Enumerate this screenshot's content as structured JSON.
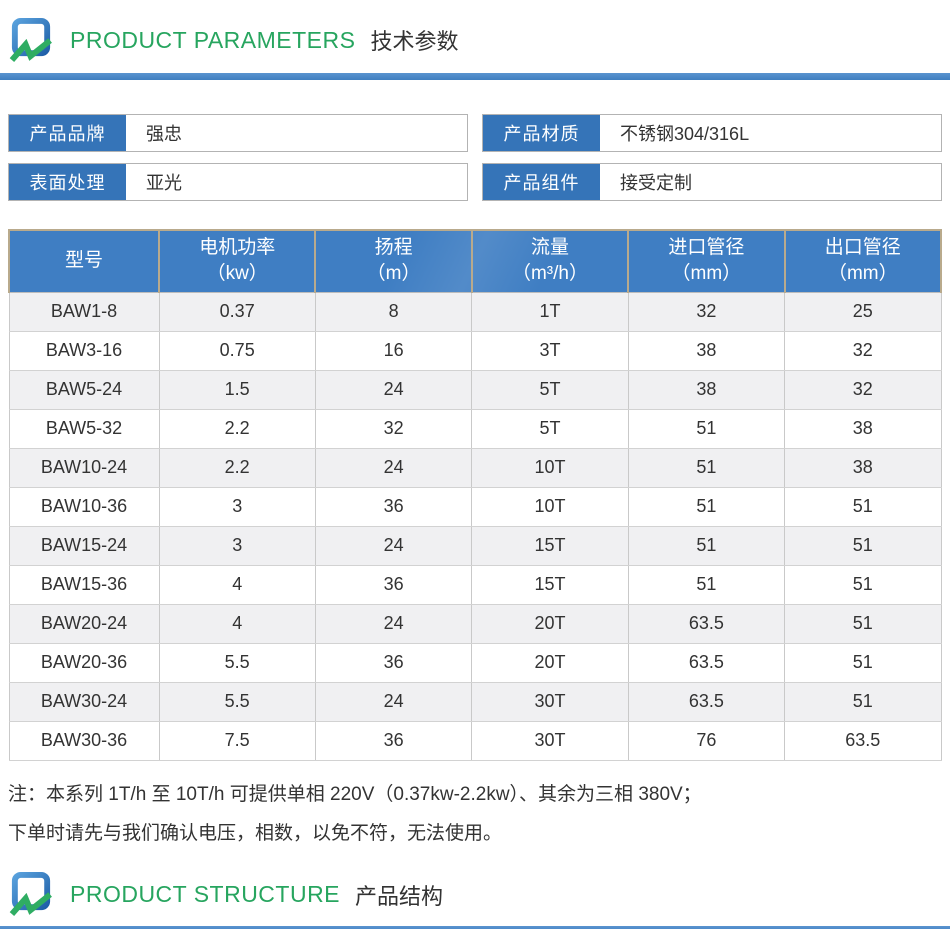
{
  "colors": {
    "accent_green": "#27a55f",
    "divider_blue": "#4a86c5",
    "label_blue": "#3574b8",
    "table_header_blue": "#3f7ec3",
    "alt_row_gray": "#f0f0f2"
  },
  "sections": {
    "parameters": {
      "title_en": "PRODUCT PARAMETERS",
      "title_zh": "技术参数"
    },
    "structure": {
      "title_en": "PRODUCT STRUCTURE",
      "title_zh": "产品结构"
    }
  },
  "info_boxes": [
    {
      "label": "产品品牌",
      "value": "强忠"
    },
    {
      "label": "产品材质",
      "value": "不锈钢304/316L"
    },
    {
      "label": "表面处理",
      "value": "亚光"
    },
    {
      "label": "产品组件",
      "value": "接受定制"
    }
  ],
  "table": {
    "headers": [
      {
        "name": "型号",
        "unit": ""
      },
      {
        "name": "电机功率",
        "unit": "（kw）"
      },
      {
        "name": "扬程",
        "unit": "（m）"
      },
      {
        "name": "流量",
        "unit": "（m³/h）"
      },
      {
        "name": "进口管径",
        "unit": "（mm）"
      },
      {
        "name": "出口管径",
        "unit": "（mm）"
      }
    ],
    "rows": [
      [
        "BAW1-8",
        "0.37",
        "8",
        "1T",
        "32",
        "25"
      ],
      [
        "BAW3-16",
        "0.75",
        "16",
        "3T",
        "38",
        "32"
      ],
      [
        "BAW5-24",
        "1.5",
        "24",
        "5T",
        "38",
        "32"
      ],
      [
        "BAW5-32",
        "2.2",
        "32",
        "5T",
        "51",
        "38"
      ],
      [
        "BAW10-24",
        "2.2",
        "24",
        "10T",
        "51",
        "38"
      ],
      [
        "BAW10-36",
        "3",
        "36",
        "10T",
        "51",
        "51"
      ],
      [
        "BAW15-24",
        "3",
        "24",
        "15T",
        "51",
        "51"
      ],
      [
        "BAW15-36",
        "4",
        "36",
        "15T",
        "51",
        "51"
      ],
      [
        "BAW20-24",
        "4",
        "24",
        "20T",
        "63.5",
        "51"
      ],
      [
        "BAW20-36",
        "5.5",
        "36",
        "20T",
        "63.5",
        "51"
      ],
      [
        "BAW30-24",
        "5.5",
        "24",
        "30T",
        "63.5",
        "51"
      ],
      [
        "BAW30-36",
        "7.5",
        "36",
        "30T",
        "76",
        "63.5"
      ]
    ]
  },
  "note": {
    "line1": "注：本系列 1T/h 至 10T/h 可提供单相 220V（0.37kw-2.2kw）、其余为三相 380V；",
    "line2": "下单时请先与我们确认电压，相数，以免不符，无法使用。"
  }
}
